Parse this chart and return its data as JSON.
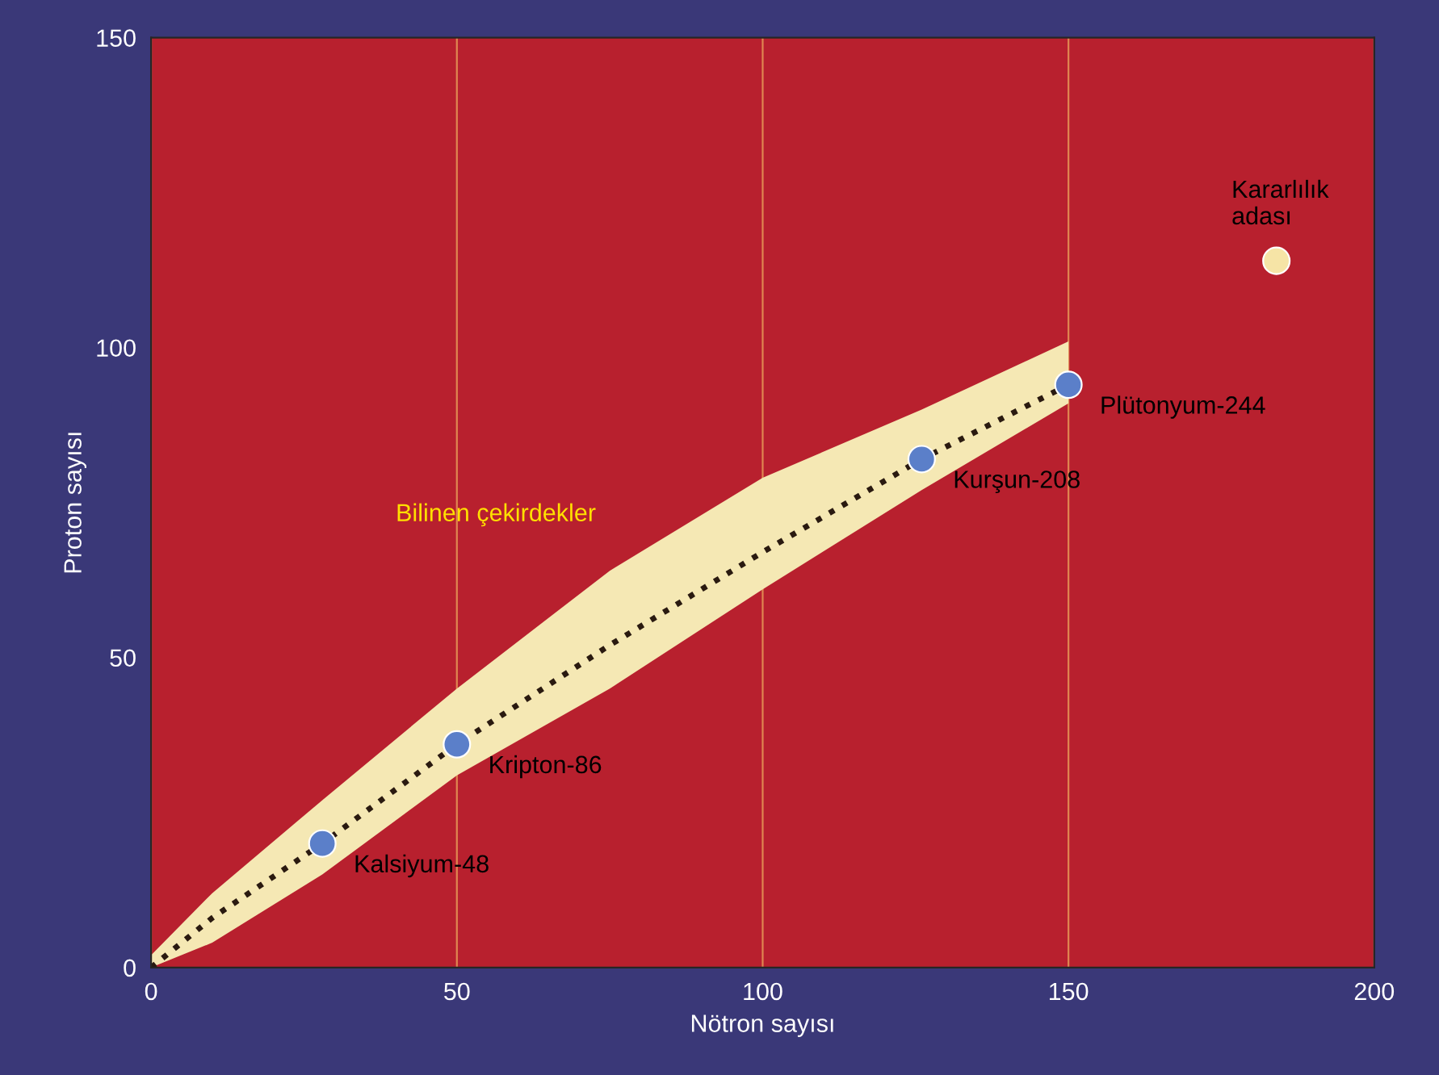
{
  "chart_data": {
    "type": "scatter",
    "xlabel": "Nötron sayısı",
    "ylabel": "Proton sayısı",
    "series": [
      {
        "type": "line",
        "color": "#2a1a10",
        "x": [
          0,
          10,
          28,
          50,
          75,
          100,
          126,
          150
        ],
        "values": [
          0,
          8,
          20,
          36,
          52,
          67,
          82,
          94
        ],
        "lower": [
          0,
          4,
          15,
          31,
          45,
          61,
          77,
          91
        ],
        "upper": [
          2,
          12,
          27,
          45,
          64,
          79,
          90,
          101
        ],
        "line_style": "dotted",
        "marker": "none"
      },
      {
        "color": "#5b7fc9",
        "x": [
          28,
          50,
          126,
          150
        ],
        "values": [
          20,
          36,
          82,
          94
        ]
      },
      {
        "color": "#f6e4a6",
        "x": [
          184
        ],
        "values": [
          114
        ]
      }
    ],
    "annotations": [
      {
        "text": "Kalsiyum-48",
        "x": 28,
        "y": 20
      },
      {
        "text": "Kripton-86",
        "x": 50,
        "y": 36
      },
      {
        "text": "Kurşun-208",
        "x": 126,
        "y": 82
      },
      {
        "text": "Plütonyum-244",
        "x": 150,
        "y": 94
      },
      {
        "text": "Kararlılık\nadası",
        "x": 184,
        "y": 114
      },
      "Bilinen çekirdekler"
    ],
    "xlim": [
      0,
      200
    ],
    "ylim": [
      0,
      150
    ],
    "xticks": [
      0,
      50,
      100,
      150,
      200
    ],
    "yticks": [
      0,
      50,
      100,
      150
    ],
    "grid": "x",
    "marker": "circle"
  }
}
